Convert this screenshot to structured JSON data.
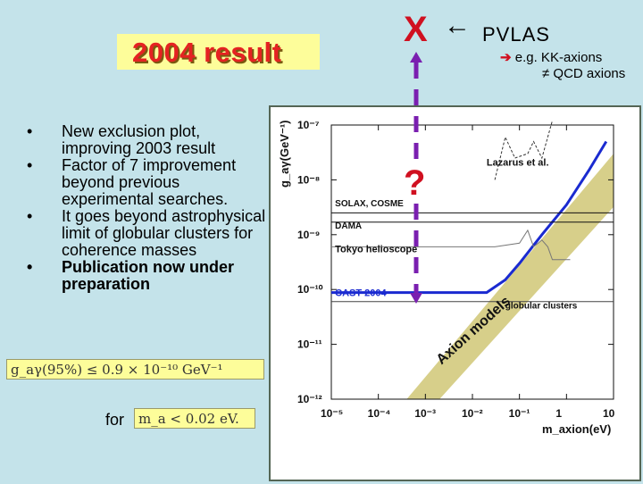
{
  "title": "2004 result",
  "bullets": [
    {
      "text": "New exclusion plot, improving 2003 result",
      "bold": false
    },
    {
      "text": "Factor of 7 improvement beyond previous experimental searches.",
      "bold": false
    },
    {
      "text": "It goes beyond astrophysical limit of globular clusters for coherence masses",
      "bold": false
    },
    {
      "text": "Publication now under preparation",
      "bold": true
    }
  ],
  "bullet_glyph": "•",
  "formula_coupling": "g_aγ(95%) ≤ 0.9 × 10⁻¹⁰ GeV⁻¹",
  "for_label": "for",
  "formula_mass": "m_a < 0.02 eV.",
  "pvlas": {
    "mark": "X",
    "arrow": "←",
    "label": "PVLAS",
    "sub_arrow": "➔",
    "sub_line1": "e.g. KK-axions",
    "sub_line2": "≠ QCD axions"
  },
  "question_mark": "?",
  "chart_data": {
    "type": "line",
    "xlabel": "m_axion(eV)",
    "ylabel": "g_aγ(GeV⁻¹)",
    "x_log": true,
    "y_log": true,
    "xlim": [
      1e-05,
      10
    ],
    "ylim": [
      1e-12,
      1e-07
    ],
    "x_ticks": [
      "10⁻⁵",
      "10⁻⁴",
      "10⁻³",
      "10⁻²",
      "10⁻¹",
      "1",
      "10"
    ],
    "y_ticks": [
      "10⁻⁷",
      "10⁻⁸",
      "10⁻⁹",
      "10⁻¹⁰",
      "10⁻¹¹",
      "10⁻¹²"
    ],
    "annotations": [
      "Lazarus et al.",
      "SOLAX, COSME",
      "DAMA",
      "Tokyo helioscope",
      "CAST 2004",
      "globular clusters",
      "Axion models"
    ],
    "series": [
      {
        "name": "CAST 2004",
        "color": "#1a2ad0",
        "points": [
          [
            1e-05,
            8.8e-11
          ],
          [
            0.02,
            8.8e-11
          ],
          [
            0.05,
            1.5e-10
          ],
          [
            0.1,
            3e-10
          ],
          [
            0.3,
            1e-09
          ],
          [
            1,
            3.5e-09
          ],
          [
            3,
            1.5e-08
          ],
          [
            7,
            5e-08
          ]
        ]
      },
      {
        "name": "Tokyo helioscope",
        "color": "#777777",
        "points": [
          [
            1e-05,
            6e-10
          ],
          [
            0.03,
            6e-10
          ],
          [
            0.1,
            7e-10
          ],
          [
            0.15,
            1.2e-09
          ],
          [
            0.2,
            6e-10
          ],
          [
            0.3,
            8e-10
          ],
          [
            0.4,
            6e-10
          ],
          [
            0.5,
            3.5e-10
          ],
          [
            1,
            3.5e-10
          ],
          [
            1.2,
            3.5e-10
          ]
        ]
      },
      {
        "name": "Lazarus et al.",
        "color": "#333333",
        "points": [
          [
            0.03,
            1e-08
          ],
          [
            0.05,
            6e-08
          ],
          [
            0.08,
            2.5e-08
          ],
          [
            0.15,
            3e-08
          ],
          [
            0.2,
            5e-08
          ],
          [
            0.3,
            2.5e-08
          ],
          [
            0.5,
            1.2e-07
          ]
        ]
      },
      {
        "name": "SOLAX, COSME",
        "color": "#111111",
        "points": [
          [
            1e-05,
            2.5e-09
          ],
          [
            10,
            2.5e-09
          ]
        ]
      },
      {
        "name": "DAMA",
        "color": "#111111",
        "points": [
          [
            1e-05,
            1.7e-09
          ],
          [
            10,
            1.7e-09
          ]
        ]
      },
      {
        "name": "globular clusters",
        "color": "#444444",
        "points": [
          [
            1e-05,
            6e-11
          ],
          [
            10,
            6e-11
          ]
        ]
      }
    ]
  }
}
